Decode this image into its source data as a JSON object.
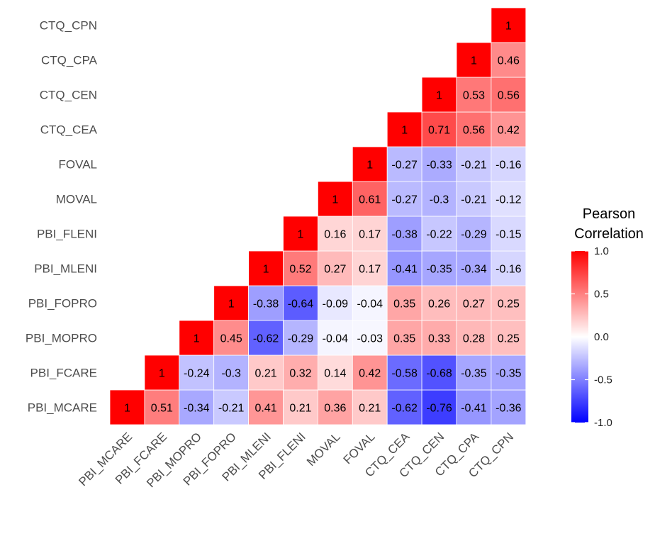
{
  "chart_data": {
    "type": "heatmap",
    "variables": [
      "PBI_MCARE",
      "PBI_FCARE",
      "PBI_MOPRO",
      "PBI_FOPRO",
      "PBI_MLENI",
      "PBI_FLENI",
      "MOVAL",
      "FOVAL",
      "CTQ_CEA",
      "CTQ_CEN",
      "CTQ_CPA",
      "CTQ_CPN"
    ],
    "values": [
      [
        "1",
        "0.51",
        "-0.34",
        "-0.21",
        "0.41",
        "0.21",
        "0.36",
        "0.21",
        "-0.62",
        "-0.76",
        "-0.41",
        "-0.36"
      ],
      [
        null,
        "1",
        "-0.24",
        "-0.3",
        "0.21",
        "0.32",
        "0.14",
        "0.42",
        "-0.58",
        "-0.68",
        "-0.35",
        "-0.35"
      ],
      [
        null,
        null,
        "1",
        "0.45",
        "-0.62",
        "-0.29",
        "-0.04",
        "-0.03",
        "0.35",
        "0.33",
        "0.28",
        "0.25"
      ],
      [
        null,
        null,
        null,
        "1",
        "-0.38",
        "-0.64",
        "-0.09",
        "-0.04",
        "0.35",
        "0.26",
        "0.27",
        "0.25"
      ],
      [
        null,
        null,
        null,
        null,
        "1",
        "0.52",
        "0.27",
        "0.17",
        "-0.41",
        "-0.35",
        "-0.34",
        "-0.16"
      ],
      [
        null,
        null,
        null,
        null,
        null,
        "1",
        "0.16",
        "0.17",
        "-0.38",
        "-0.22",
        "-0.29",
        "-0.15"
      ],
      [
        null,
        null,
        null,
        null,
        null,
        null,
        "1",
        "0.61",
        "-0.27",
        "-0.3",
        "-0.21",
        "-0.12"
      ],
      [
        null,
        null,
        null,
        null,
        null,
        null,
        null,
        "1",
        "-0.27",
        "-0.33",
        "-0.21",
        "-0.16"
      ],
      [
        null,
        null,
        null,
        null,
        null,
        null,
        null,
        null,
        "1",
        "0.71",
        "0.56",
        "0.42"
      ],
      [
        null,
        null,
        null,
        null,
        null,
        null,
        null,
        null,
        null,
        "1",
        "0.53",
        "0.56"
      ],
      [
        null,
        null,
        null,
        null,
        null,
        null,
        null,
        null,
        null,
        null,
        "1",
        "0.46"
      ],
      [
        null,
        null,
        null,
        null,
        null,
        null,
        null,
        null,
        null,
        null,
        null,
        "1"
      ]
    ],
    "legend": {
      "title_lines": [
        "Pearson",
        "Correlation"
      ],
      "ticks": [
        "1.0",
        "0.5",
        "0.0",
        "-0.5",
        "-1.0"
      ],
      "range": [
        -1,
        1
      ],
      "placement": "right"
    },
    "colors": {
      "low": "#0000ff",
      "mid": "#ffffff",
      "high": "#ff0000"
    },
    "grid": false
  }
}
